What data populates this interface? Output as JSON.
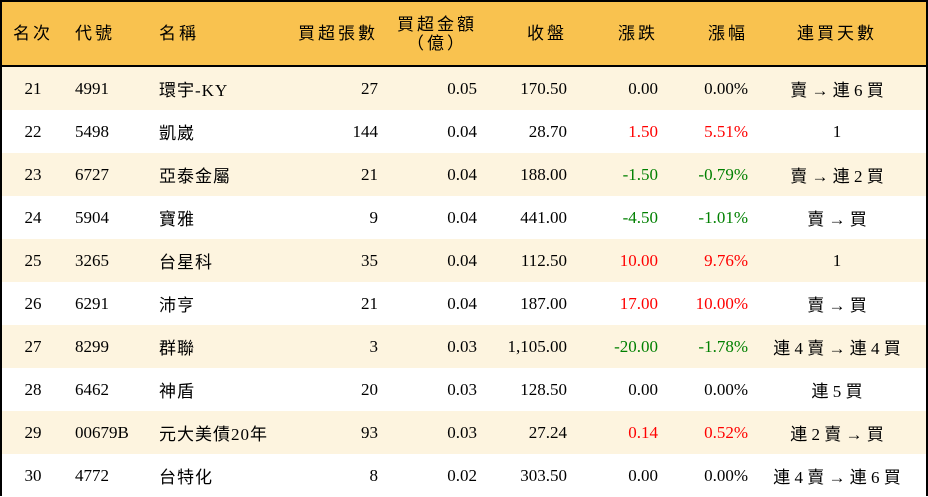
{
  "colors": {
    "header_bg": "#F9C24F",
    "row_alt_bg": "#FDF4DF",
    "up": "#FF0000",
    "down": "#008000"
  },
  "headers": {
    "rank": "名次",
    "code": "代號",
    "name": "名稱",
    "net_buy_lots": "買超張數",
    "net_buy_amount_1": "買超金額",
    "net_buy_amount_2": "（億）",
    "close": "收盤",
    "change": "漲跌",
    "change_pct": "漲幅",
    "streak": "連買天數"
  },
  "rows": [
    {
      "rank": "21",
      "code": "4991",
      "name": "環宇-KY",
      "lots": "27",
      "amount": "0.05",
      "close": "170.50",
      "change": "0.00",
      "pct": "0.00%",
      "streak": "賣 → 連 6 買",
      "dir": "flat"
    },
    {
      "rank": "22",
      "code": "5498",
      "name": "凱崴",
      "lots": "144",
      "amount": "0.04",
      "close": "28.70",
      "change": "1.50",
      "pct": "5.51%",
      "streak": "1",
      "dir": "up"
    },
    {
      "rank": "23",
      "code": "6727",
      "name": "亞泰金屬",
      "lots": "21",
      "amount": "0.04",
      "close": "188.00",
      "change": "-1.50",
      "pct": "-0.79%",
      "streak": "賣 → 連 2 買",
      "dir": "down"
    },
    {
      "rank": "24",
      "code": "5904",
      "name": "寶雅",
      "lots": "9",
      "amount": "0.04",
      "close": "441.00",
      "change": "-4.50",
      "pct": "-1.01%",
      "streak": "賣 → 買",
      "dir": "down"
    },
    {
      "rank": "25",
      "code": "3265",
      "name": "台星科",
      "lots": "35",
      "amount": "0.04",
      "close": "112.50",
      "change": "10.00",
      "pct": "9.76%",
      "streak": "1",
      "dir": "up"
    },
    {
      "rank": "26",
      "code": "6291",
      "name": "沛亨",
      "lots": "21",
      "amount": "0.04",
      "close": "187.00",
      "change": "17.00",
      "pct": "10.00%",
      "streak": "賣 → 買",
      "dir": "up"
    },
    {
      "rank": "27",
      "code": "8299",
      "name": "群聯",
      "lots": "3",
      "amount": "0.03",
      "close": "1,105.00",
      "change": "-20.00",
      "pct": "-1.78%",
      "streak": "連 4 賣 → 連 4 買",
      "dir": "down"
    },
    {
      "rank": "28",
      "code": "6462",
      "name": "神盾",
      "lots": "20",
      "amount": "0.03",
      "close": "128.50",
      "change": "0.00",
      "pct": "0.00%",
      "streak": "連 5 買",
      "dir": "flat"
    },
    {
      "rank": "29",
      "code": "00679B",
      "name": "元大美債20年",
      "lots": "93",
      "amount": "0.03",
      "close": "27.24",
      "change": "0.14",
      "pct": "0.52%",
      "streak": "連 2 賣 → 買",
      "dir": "up"
    },
    {
      "rank": "30",
      "code": "4772",
      "name": "台特化",
      "lots": "8",
      "amount": "0.02",
      "close": "303.50",
      "change": "0.00",
      "pct": "0.00%",
      "streak": "連 4 賣 → 連 6 買",
      "dir": "flat"
    }
  ]
}
